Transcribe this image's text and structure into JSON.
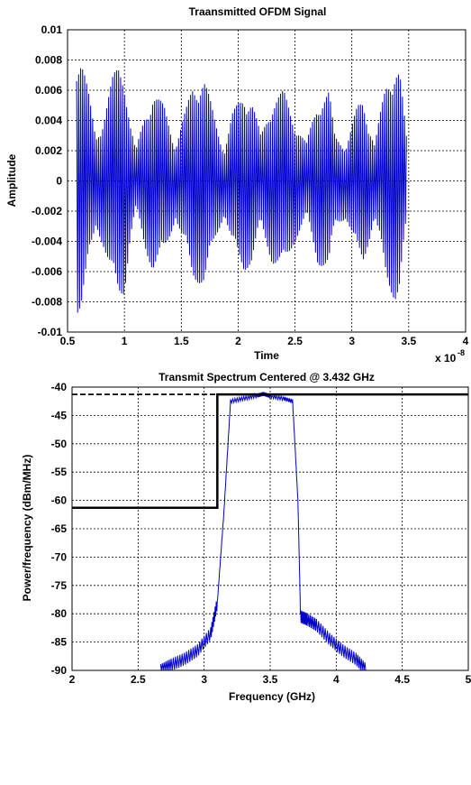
{
  "chart_data": [
    {
      "type": "line",
      "title": "Traansmitted OFDM Signal",
      "xlabel": "Time",
      "ylabel": "Amplitude",
      "x_exponent_label": "x 10",
      "x_exponent_power": "-8",
      "xlim": [
        0.5,
        4.0
      ],
      "ylim": [
        -0.01,
        0.01
      ],
      "x_ticks": [
        "0.5",
        "1",
        "1.5",
        "2",
        "2.5",
        "3",
        "3.5",
        "4"
      ],
      "x_tick_values": [
        0.5,
        1.0,
        1.5,
        2.0,
        2.5,
        3.0,
        3.5,
        4.0
      ],
      "y_ticks": [
        "0.01",
        "0.008",
        "0.006",
        "0.004",
        "0.002",
        "0",
        "-0.002",
        "-0.004",
        "-0.006",
        "-0.008",
        "-0.01"
      ],
      "y_tick_values": [
        0.01,
        0.008,
        0.006,
        0.004,
        0.002,
        0,
        -0.002,
        -0.004,
        -0.006,
        -0.008,
        -0.01
      ],
      "grid": true,
      "series": [
        {
          "color": "#0000cc",
          "x_range": [
            0.58,
            3.48
          ],
          "envelope_x": [
            0.58,
            0.62,
            0.68,
            0.75,
            0.82,
            0.9,
            0.95,
            1.0,
            1.05,
            1.1,
            1.18,
            1.25,
            1.35,
            1.45,
            1.55,
            1.6,
            1.7,
            1.8,
            1.88,
            1.95,
            2.05,
            2.12,
            2.2,
            2.3,
            2.4,
            2.5,
            2.6,
            2.7,
            2.8,
            2.85,
            2.95,
            3.05,
            3.1,
            3.2,
            3.3,
            3.38,
            3.42,
            3.48
          ],
          "envelope_y": [
            0.0088,
            0.0085,
            0.006,
            0.003,
            0.0045,
            0.007,
            0.0078,
            0.0075,
            0.004,
            0.002,
            0.0045,
            0.006,
            0.005,
            0.0025,
            0.005,
            0.0065,
            0.007,
            0.004,
            0.0022,
            0.0045,
            0.006,
            0.0055,
            0.003,
            0.0055,
            0.006,
            0.004,
            0.0025,
            0.0055,
            0.006,
            0.003,
            0.0025,
            0.005,
            0.0055,
            0.0025,
            0.0065,
            0.008,
            0.0075,
            0.003
          ]
        }
      ]
    },
    {
      "type": "line",
      "title": "Transmit Spectrum Centered @ 3.432 GHz",
      "xlabel": "Frequency (GHz)",
      "ylabel": "Power/frequency (dBm/MHz)",
      "xlim": [
        2,
        5
      ],
      "ylim": [
        -90,
        -40
      ],
      "x_ticks": [
        "2",
        "2.5",
        "3",
        "3.5",
        "4",
        "4.5",
        "5"
      ],
      "x_tick_values": [
        2,
        2.5,
        3,
        3.5,
        4,
        4.5,
        5
      ],
      "y_ticks": [
        "-40",
        "-45",
        "-50",
        "-55",
        "-60",
        "-65",
        "-70",
        "-75",
        "-80",
        "-85",
        "-90"
      ],
      "y_tick_values": [
        -40,
        -45,
        -50,
        -55,
        -60,
        -65,
        -70,
        -75,
        -80,
        -85,
        -90
      ],
      "grid": true,
      "series": [
        {
          "color": "#0000cc",
          "x": [
            2.67,
            2.75,
            2.85,
            2.95,
            3.05,
            3.1,
            3.15,
            3.2,
            3.3,
            3.4,
            3.45,
            3.5,
            3.6,
            3.67,
            3.71,
            3.73,
            3.78,
            3.85,
            3.95,
            4.05,
            4.15,
            4.23
          ],
          "y": [
            -90,
            -89,
            -88,
            -86.5,
            -83.5,
            -78,
            -62,
            -42.5,
            -42,
            -41.5,
            -41.2,
            -41.6,
            -42,
            -42.5,
            -60,
            -80.5,
            -81,
            -82,
            -84.5,
            -86.5,
            -88,
            -90
          ]
        },
        {
          "name": "mask",
          "color": "#000000",
          "x": [
            2,
            3.04,
            3.04,
            3.1,
            3.1,
            5
          ],
          "y": [
            -61.3,
            -61.3,
            -61.3,
            -61.3,
            -41.3,
            -41.3
          ]
        },
        {
          "name": "mask-dashed",
          "color": "#000000",
          "x": [
            2,
            3.1
          ],
          "y": [
            -41.3,
            -41.3
          ]
        }
      ]
    }
  ]
}
